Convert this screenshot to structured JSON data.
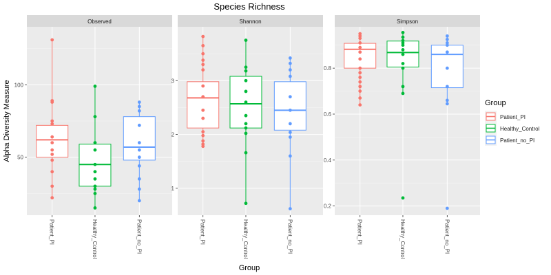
{
  "chart_data": {
    "type": "box",
    "title": "Species Richness",
    "xlabel": "Group",
    "ylabel": "Alpha Diversity Measure",
    "categories": [
      "Patient_PI",
      "Healthy_Control",
      "Patient_no_PI"
    ],
    "legend": {
      "title": "Group",
      "placement": "right",
      "entries": [
        "Patient_PI",
        "Healthy_Control",
        "Patient_no_PI"
      ]
    },
    "colors": {
      "Patient_PI": "#f8766d",
      "Healthy_Control": "#00ba38",
      "Patient_no_PI": "#619cff"
    },
    "panels": [
      {
        "name": "Observed",
        "ylim": [
          10,
          140
        ],
        "yticks": [
          50,
          100
        ],
        "ytick_labels": [
          "50",
          "100"
        ],
        "boxes": [
          {
            "group": "Patient_PI",
            "q1": 50,
            "median": 62,
            "q3": 72,
            "whisker_low": 22,
            "whisker_high": 131,
            "points": [
              131,
              89,
              88,
              75,
              73,
              64,
              60,
              55,
              52,
              48,
              40,
              30,
              22
            ]
          },
          {
            "group": "Healthy_Control",
            "q1": 30,
            "median": 45,
            "q3": 59,
            "whisker_low": 15,
            "whisker_high": 99,
            "points": [
              99,
              78,
              60,
              55,
              45,
              40,
              35,
              30,
              28,
              25,
              15
            ]
          },
          {
            "group": "Patient_no_PI",
            "q1": 48,
            "median": 57,
            "q3": 78,
            "whisker_low": 20,
            "whisker_high": 88,
            "points": [
              88,
              85,
              82,
              72,
              60,
              55,
              50,
              44,
              35,
              28,
              20
            ]
          }
        ]
      },
      {
        "name": "Shannon",
        "ylim": [
          0.5,
          4.0
        ],
        "yticks": [
          1,
          2,
          3
        ],
        "ytick_labels": [
          "1",
          "2",
          "3"
        ],
        "boxes": [
          {
            "group": "Patient_PI",
            "q1": 2.12,
            "median": 2.68,
            "q3": 2.98,
            "whisker_low": 1.78,
            "whisker_high": 3.82,
            "points": [
              3.82,
              3.65,
              3.5,
              3.38,
              3.3,
              3.2,
              2.9,
              2.7,
              2.45,
              2.3,
              2.05,
              1.98,
              1.88,
              1.82,
              1.78
            ]
          },
          {
            "group": "Healthy_Control",
            "q1": 2.12,
            "median": 2.57,
            "q3": 3.08,
            "whisker_low": 0.72,
            "whisker_high": 3.75,
            "points": [
              3.75,
              3.25,
              3.18,
              3.0,
              2.8,
              2.6,
              2.35,
              2.2,
              2.12,
              2.02,
              1.66,
              0.72
            ]
          },
          {
            "group": "Patient_no_PI",
            "q1": 2.08,
            "median": 2.45,
            "q3": 2.98,
            "whisker_low": 0.62,
            "whisker_high": 3.42,
            "points": [
              3.42,
              3.32,
              3.2,
              3.08,
              2.7,
              2.45,
              2.2,
              2.04,
              1.95,
              1.6,
              0.62
            ]
          }
        ]
      },
      {
        "name": "Simpson",
        "ylim": [
          0.16,
          0.98
        ],
        "yticks": [
          0.2,
          0.4,
          0.6,
          0.8
        ],
        "ytick_labels": [
          "0.2",
          "0.4",
          "0.6",
          "0.8"
        ],
        "boxes": [
          {
            "group": "Patient_PI",
            "q1": 0.8,
            "median": 0.882,
            "q3": 0.908,
            "whisker_low": 0.64,
            "whisker_high": 0.95,
            "points": [
              0.95,
              0.94,
              0.93,
              0.91,
              0.89,
              0.87,
              0.84,
              0.8,
              0.78,
              0.76,
              0.74,
              0.72,
              0.7,
              0.67,
              0.64
            ]
          },
          {
            "group": "Healthy_Control",
            "q1": 0.805,
            "median": 0.868,
            "q3": 0.918,
            "whisker_low": 0.69,
            "whisker_high": 0.955,
            "points": [
              0.955,
              0.935,
              0.92,
              0.91,
              0.9,
              0.88,
              0.86,
              0.82,
              0.8,
              0.72,
              0.69,
              0.235
            ]
          },
          {
            "group": "Patient_no_PI",
            "q1": 0.715,
            "median": 0.86,
            "q3": 0.9,
            "whisker_low": 0.645,
            "whisker_high": 0.94,
            "points": [
              0.94,
              0.925,
              0.91,
              0.9,
              0.87,
              0.8,
              0.72,
              0.66,
              0.645,
              0.19
            ]
          }
        ]
      }
    ]
  }
}
